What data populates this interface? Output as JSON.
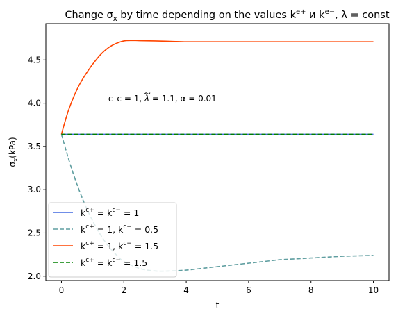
{
  "chart_data": {
    "type": "line",
    "title_parts": {
      "p1": "Change σ",
      "p2": "x",
      "p3": " by time depending on the values k",
      "p4": "e+",
      "p5": " и k",
      "p6": "e−",
      "p7": ", λ = const"
    },
    "xlabel": "t",
    "ylabel_parts": {
      "p1": "σ",
      "p2": "x",
      "p3": "(kPa)"
    },
    "xlim": [
      -0.5,
      10.5
    ],
    "ylim": [
      1.95,
      4.92
    ],
    "xticks": [
      0,
      2,
      4,
      6,
      8,
      10
    ],
    "xtick_labels": [
      "0",
      "2",
      "4",
      "6",
      "8",
      "10"
    ],
    "yticks": [
      2.0,
      2.5,
      3.0,
      3.5,
      4.0,
      4.5
    ],
    "ytick_labels": [
      "2.0",
      "2.5",
      "3.0",
      "3.5",
      "4.0",
      "4.5"
    ],
    "grid": false,
    "legend_position": "lower-left",
    "annotation": {
      "x": 1.5,
      "y": 4.02,
      "p1": "c_c = 1, ",
      "p2": "λ",
      "p3": " = 1.1, α = 0.01"
    },
    "series": [
      {
        "label_parts": {
          "a": "k",
          "b": "c+",
          "c": " = k",
          "d": "c−",
          "e": " = 1"
        },
        "color": "#4169e1",
        "dash": "solid",
        "x": [
          0,
          10
        ],
        "y": [
          3.64,
          3.64
        ]
      },
      {
        "label_parts": {
          "a": "k",
          "b": "c+",
          "c": " = 1, k",
          "d": "c−",
          "e": " = 0.5"
        },
        "color": "#5f9ea0",
        "dash": "dashed",
        "x": [
          0,
          0.25,
          0.5,
          0.75,
          1,
          1.25,
          1.5,
          1.75,
          2,
          2.5,
          3,
          3.5,
          4,
          4.5,
          5,
          5.5,
          6,
          6.5,
          7,
          7.5,
          8,
          8.5,
          9,
          9.5,
          10
        ],
        "y": [
          3.64,
          3.33,
          3.06,
          2.83,
          2.64,
          2.48,
          2.35,
          2.25,
          2.17,
          2.09,
          2.06,
          2.06,
          2.07,
          2.09,
          2.11,
          2.13,
          2.15,
          2.17,
          2.19,
          2.2,
          2.21,
          2.22,
          2.23,
          2.235,
          2.24
        ]
      },
      {
        "label_parts": {
          "a": "k",
          "b": "c+",
          "c": " = 1, k",
          "d": "c−",
          "e": " = 1.5"
        },
        "color": "#ff4500",
        "dash": "solid",
        "x": [
          0,
          0.1,
          0.2,
          0.3,
          0.4,
          0.5,
          0.6,
          0.75,
          0.9,
          1,
          1.25,
          1.5,
          1.75,
          2,
          2.25,
          2.5,
          3,
          3.5,
          4,
          4.5,
          5,
          6,
          7,
          8,
          9,
          10
        ],
        "y": [
          3.64,
          3.77,
          3.89,
          3.99,
          4.08,
          4.16,
          4.23,
          4.32,
          4.4,
          4.45,
          4.56,
          4.64,
          4.69,
          4.72,
          4.725,
          4.723,
          4.72,
          4.715,
          4.71,
          4.71,
          4.71,
          4.71,
          4.71,
          4.71,
          4.71,
          4.71
        ]
      },
      {
        "label_parts": {
          "a": "k",
          "b": "c+",
          "c": " = k",
          "d": "c−",
          "e": " = 1.5"
        },
        "color": "#008000",
        "dash": "dashed",
        "x": [
          0,
          10
        ],
        "y": [
          3.64,
          3.64
        ]
      }
    ]
  }
}
